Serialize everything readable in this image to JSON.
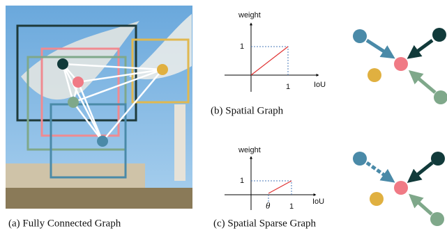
{
  "panels": [
    {
      "caption": "(a) Fully Connected Graph"
    },
    {
      "caption": "(b) Spatial Graph",
      "plot": {
        "y_label": "weight",
        "y_tick": "1",
        "x_ticks": [
          "1"
        ],
        "x_label": "IoU"
      }
    },
    {
      "caption": "(c) Spatial Sparse Graph",
      "plot": {
        "y_label": "weight",
        "y_tick": "1",
        "x_ticks": [
          "θ",
          "1"
        ],
        "x_label": "IoU"
      }
    }
  ]
}
